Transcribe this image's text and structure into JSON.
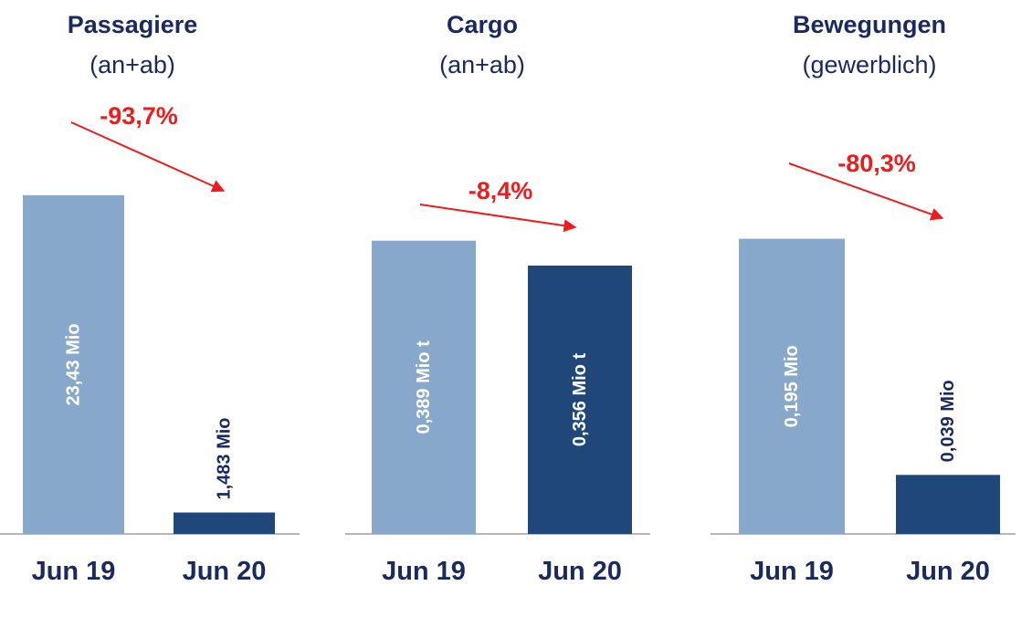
{
  "colors": {
    "light_bar": "#88a8cb",
    "dark_bar": "#1f477a",
    "title": "#1b2a5e",
    "change": "#ee1c1c",
    "axis": "#8c8c8c",
    "label_light": "#ffffff",
    "label_dark": "#1b2a5e"
  },
  "chart_data": [
    {
      "type": "bar",
      "title": "Passagiere",
      "subtitle": "(an+ab)",
      "categories": [
        "Jun 19",
        "Jun 20"
      ],
      "values": [
        23.43,
        1.483
      ],
      "data_labels": [
        "23,43 Mio",
        "1,483 Mio"
      ],
      "change_label": "-93,7%",
      "ylim": [
        0,
        25.76
      ]
    },
    {
      "type": "bar",
      "title": "Cargo",
      "subtitle": "(an+ab)",
      "categories": [
        "Jun 19",
        "Jun 20"
      ],
      "values": [
        0.389,
        0.356
      ],
      "data_labels": [
        "0,389 Mio t",
        "0,356 Mio t"
      ],
      "change_label": "-8,4%",
      "ylim": [
        0,
        0.494
      ]
    },
    {
      "type": "bar",
      "title": "Bewegungen",
      "subtitle": "(gewerblich)",
      "categories": [
        "Jun 19",
        "Jun 20"
      ],
      "values": [
        0.195,
        0.039
      ],
      "data_labels": [
        "0,195 Mio",
        "0,039 Mio"
      ],
      "change_label": "-80,3%",
      "ylim": [
        0,
        0.246
      ]
    }
  ]
}
